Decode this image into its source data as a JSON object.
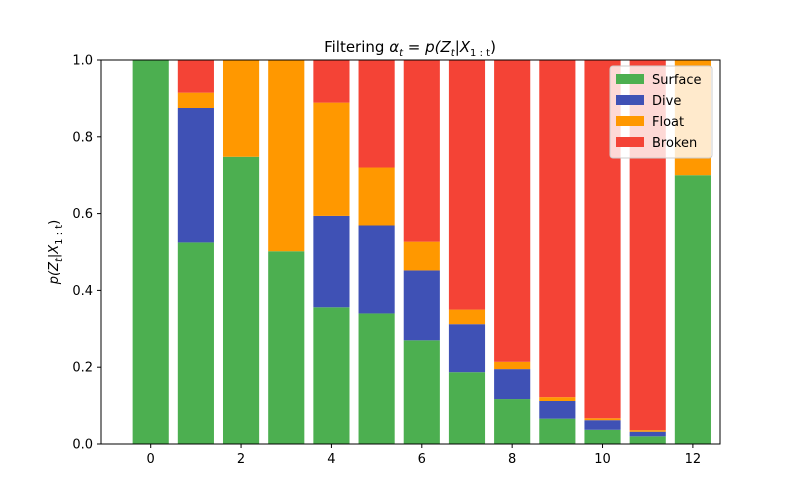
{
  "chart_data": {
    "type": "bar",
    "stacked": true,
    "title_prefix": "Filtering ",
    "title_math": "α",
    "title_math_sub": "t",
    "title_rest": " = p(Z",
    "title_rest_sub": "t",
    "title_rest2": "|X",
    "title_rest2_sub": "1 : t",
    "title_end": ")",
    "ylabel_main": "p(Z",
    "ylabel_sub1": "t",
    "ylabel_mid": "|X",
    "ylabel_sub2": "1 : t",
    "ylabel_end": ")",
    "x": [
      0,
      1,
      2,
      3,
      4,
      5,
      6,
      7,
      8,
      9,
      10,
      11,
      12
    ],
    "xticks": [
      "0",
      "2",
      "4",
      "6",
      "8",
      "10",
      "12"
    ],
    "xtick_values": [
      0,
      2,
      4,
      6,
      8,
      10,
      12
    ],
    "yticks": [
      "0.0",
      "0.2",
      "0.4",
      "0.6",
      "0.8",
      "1.0"
    ],
    "ytick_values": [
      0.0,
      0.2,
      0.4,
      0.6,
      0.8,
      1.0
    ],
    "xlim": [
      -1.1,
      12.6
    ],
    "ylim": [
      0,
      1
    ],
    "legend_position": "upper right",
    "series": [
      {
        "name": "Surface",
        "color": "#4caf50",
        "values": [
          1.0,
          0.525,
          0.748,
          0.502,
          0.356,
          0.34,
          0.27,
          0.187,
          0.117,
          0.066,
          0.037,
          0.02,
          0.7
        ]
      },
      {
        "name": "Dive",
        "color": "#3f51b5",
        "values": [
          0.0,
          0.35,
          0.0,
          0.0,
          0.238,
          0.229,
          0.182,
          0.125,
          0.078,
          0.046,
          0.025,
          0.012,
          0.0
        ]
      },
      {
        "name": "Float",
        "color": "#ff9800",
        "values": [
          0.0,
          0.04,
          0.252,
          0.498,
          0.295,
          0.151,
          0.075,
          0.038,
          0.019,
          0.01,
          0.005,
          0.004,
          0.3
        ]
      },
      {
        "name": "Broken",
        "color": "#f44336",
        "values": [
          0.0,
          0.085,
          0.0,
          0.0,
          0.111,
          0.28,
          0.473,
          0.65,
          0.786,
          0.878,
          0.933,
          0.964,
          0.0
        ]
      }
    ]
  }
}
